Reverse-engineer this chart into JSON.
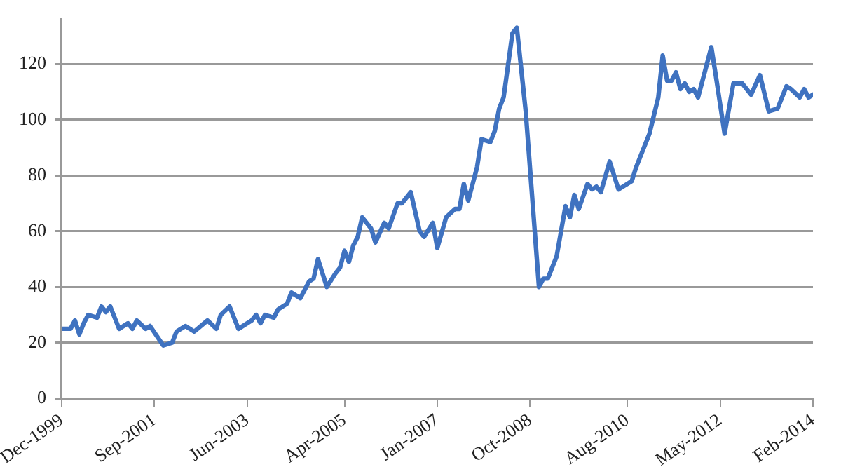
{
  "chart_data": {
    "type": "line",
    "x": [
      "1999-12",
      "2000-02",
      "2000-03",
      "2000-04",
      "2000-05",
      "2000-06",
      "2000-08",
      "2000-09",
      "2000-10",
      "2000-11",
      "2001-01",
      "2001-02",
      "2001-03",
      "2001-04",
      "2001-05",
      "2001-07",
      "2001-08",
      "2001-11",
      "2002-01",
      "2002-02",
      "2002-04",
      "2002-06",
      "2002-09",
      "2002-11",
      "2002-12",
      "2003-02",
      "2003-04",
      "2003-07",
      "2003-08",
      "2003-09",
      "2003-10",
      "2003-12",
      "2004-01",
      "2004-02",
      "2004-03",
      "2004-04",
      "2004-06",
      "2004-07",
      "2004-08",
      "2004-09",
      "2004-10",
      "2004-12",
      "2005-02",
      "2005-03",
      "2005-04",
      "2005-05",
      "2005-06",
      "2005-07",
      "2005-08",
      "2005-10",
      "2005-11",
      "2006-01",
      "2006-02",
      "2006-04",
      "2006-05",
      "2006-07",
      "2006-09",
      "2006-10",
      "2006-12",
      "2007-01",
      "2007-03",
      "2007-05",
      "2007-06",
      "2007-07",
      "2007-08",
      "2007-10",
      "2007-11",
      "2008-01",
      "2008-02",
      "2008-03",
      "2008-04",
      "2008-06",
      "2008-07",
      "2008-09",
      "2008-12",
      "2009-01",
      "2009-02",
      "2009-04",
      "2009-06",
      "2009-07",
      "2009-08",
      "2009-09",
      "2009-11",
      "2009-12",
      "2010-01",
      "2010-02",
      "2010-04",
      "2010-06",
      "2010-07",
      "2010-09",
      "2010-10",
      "2010-11",
      "2011-01",
      "2011-03",
      "2011-04",
      "2011-05",
      "2011-06",
      "2011-07",
      "2011-08",
      "2011-09",
      "2011-10",
      "2011-11",
      "2011-12",
      "2012-03",
      "2012-04",
      "2012-06",
      "2012-08",
      "2012-10",
      "2012-12",
      "2013-02",
      "2013-04",
      "2013-06",
      "2013-08",
      "2013-09",
      "2013-11",
      "2013-12",
      "2014-01",
      "2014-02"
    ],
    "series": [
      {
        "color": "#3f72c0",
        "values": [
          25,
          25,
          28,
          23,
          27,
          30,
          29,
          33,
          31,
          33,
          25,
          26,
          27,
          25,
          28,
          25,
          26,
          19,
          20,
          24,
          26,
          24,
          28,
          25,
          30,
          33,
          25,
          28,
          30,
          27,
          30,
          29,
          32,
          33,
          34,
          38,
          36,
          39,
          42,
          43,
          50,
          40,
          45,
          47,
          53,
          49,
          55,
          58,
          65,
          61,
          56,
          63,
          61,
          70,
          70,
          74,
          60,
          58,
          63,
          54,
          65,
          68,
          68,
          77,
          71,
          83,
          93,
          92,
          96,
          104,
          108,
          131,
          133,
          103,
          40,
          43,
          43,
          51,
          69,
          65,
          73,
          68,
          77,
          75,
          76,
          74,
          85,
          75,
          76,
          78,
          83,
          87,
          95,
          108,
          123,
          114,
          114,
          117,
          111,
          113,
          110,
          111,
          108,
          126,
          116,
          95,
          113,
          113,
          109,
          116,
          103,
          104,
          112,
          111,
          108,
          111,
          108,
          109
        ]
      }
    ],
    "xlim": [
      "1999-12",
      "2014-02"
    ],
    "xticks": [
      {
        "value": "1999-12",
        "label": "Dec-1999"
      },
      {
        "value": "2001-09",
        "label": "Sep-2001"
      },
      {
        "value": "2003-06",
        "label": "Jun-2003"
      },
      {
        "value": "2005-04",
        "label": "Apr-2005"
      },
      {
        "value": "2007-01",
        "label": "Jan-2007"
      },
      {
        "value": "2008-10",
        "label": "Oct-2008"
      },
      {
        "value": "2010-08",
        "label": "Aug-2010"
      },
      {
        "value": "2012-05",
        "label": "May-2012"
      },
      {
        "value": "2014-02",
        "label": "Feb-2014"
      }
    ],
    "ylim": [
      0,
      136
    ],
    "yticks": [
      0,
      20,
      40,
      60,
      80,
      100,
      120
    ],
    "grid": "y",
    "marker": "none",
    "line_style": "solid"
  }
}
